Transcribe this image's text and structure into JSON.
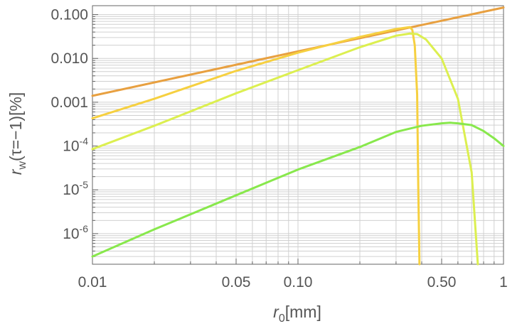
{
  "chart_data": {
    "type": "line",
    "x_scale": "log",
    "y_scale": "log",
    "xlim": [
      0.01,
      1
    ],
    "ylim": [
      2e-07,
      0.16
    ],
    "grid": true,
    "legend": "none",
    "xlabel": {
      "var": "r",
      "sub": "0",
      "unit": "[mm]"
    },
    "ylabel": {
      "var": "r",
      "sub": "w",
      "args": "(τ=−1)[%]"
    },
    "x_ticks": [
      {
        "value": 0.01,
        "label": "0.01"
      },
      {
        "value": 0.05,
        "label": "0.05"
      },
      {
        "value": 0.1,
        "label": "0.10"
      },
      {
        "value": 0.5,
        "label": "0.50"
      },
      {
        "value": 1,
        "label": "1"
      }
    ],
    "y_ticks": [
      {
        "value": 0.1,
        "label": "0.100"
      },
      {
        "value": 0.01,
        "label": "0.010"
      },
      {
        "value": 0.001,
        "label": "0.001"
      },
      {
        "value": 0.0001,
        "base": "10",
        "exp": "-4"
      },
      {
        "value": 1e-05,
        "base": "10",
        "exp": "-5"
      },
      {
        "value": 1e-06,
        "base": "10",
        "exp": "-6"
      }
    ],
    "series": [
      {
        "color": "#e8a040",
        "points": [
          [
            0.01,
            0.0014
          ],
          [
            0.1,
            0.0145
          ],
          [
            1,
            0.145
          ]
        ]
      },
      {
        "color": "#f6d040",
        "points": [
          [
            0.01,
            0.00043
          ],
          [
            0.02,
            0.0012
          ],
          [
            0.05,
            0.0052
          ],
          [
            0.1,
            0.0135
          ],
          [
            0.2,
            0.031
          ],
          [
            0.3,
            0.047
          ],
          [
            0.35,
            0.052
          ],
          [
            0.36,
            0.045
          ],
          [
            0.37,
            0.02
          ],
          [
            0.38,
            0.0015
          ],
          [
            0.385,
            1e-05
          ],
          [
            0.39,
            2e-07
          ]
        ]
      },
      {
        "color": "#dcef50",
        "points": [
          [
            0.01,
            8.5e-05
          ],
          [
            0.02,
            0.00029
          ],
          [
            0.05,
            0.0016
          ],
          [
            0.1,
            0.0054
          ],
          [
            0.2,
            0.018
          ],
          [
            0.3,
            0.033
          ],
          [
            0.35,
            0.037
          ],
          [
            0.38,
            0.036
          ],
          [
            0.42,
            0.027
          ],
          [
            0.5,
            0.01
          ],
          [
            0.6,
            0.0012
          ],
          [
            0.7,
            2.5e-05
          ],
          [
            0.75,
            2e-07
          ]
        ]
      },
      {
        "color": "#88e84c",
        "points": [
          [
            0.01,
            3e-07
          ],
          [
            0.02,
            1.25e-06
          ],
          [
            0.05,
            7.5e-06
          ],
          [
            0.1,
            2.9e-05
          ],
          [
            0.2,
            9.5e-05
          ],
          [
            0.3,
            0.00021
          ],
          [
            0.4,
            0.00029
          ],
          [
            0.5,
            0.00033
          ],
          [
            0.55,
            0.00034
          ],
          [
            0.6,
            0.00033
          ],
          [
            0.7,
            0.0003
          ],
          [
            0.8,
            0.00022
          ],
          [
            0.9,
            0.00015
          ],
          [
            1,
            0.0001
          ]
        ]
      }
    ]
  }
}
